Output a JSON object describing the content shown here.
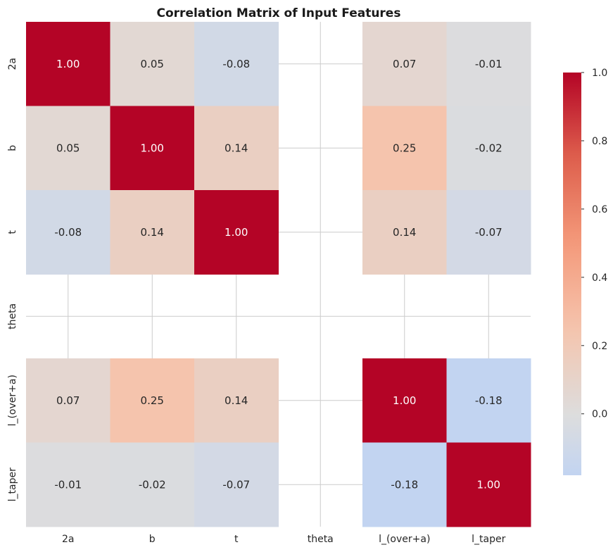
{
  "chart_data": {
    "type": "heatmap",
    "title": "Correlation Matrix of Input Features",
    "x_labels": [
      "2a",
      "b",
      "t",
      "theta",
      "l_(over+a)",
      "l_taper"
    ],
    "y_labels": [
      "2a",
      "b",
      "t",
      "theta",
      "l_(over+a)",
      "l_taper"
    ],
    "values": [
      [
        1.0,
        0.05,
        -0.08,
        null,
        0.07,
        -0.01
      ],
      [
        0.05,
        1.0,
        0.14,
        null,
        0.25,
        -0.02
      ],
      [
        -0.08,
        0.14,
        1.0,
        null,
        0.14,
        -0.07
      ],
      [
        null,
        null,
        null,
        null,
        null,
        null
      ],
      [
        0.07,
        0.25,
        0.14,
        null,
        1.0,
        -0.18
      ],
      [
        -0.01,
        -0.02,
        -0.07,
        null,
        -0.18,
        1.0
      ]
    ],
    "value_format": "0.00",
    "colormap": "coolwarm",
    "center": 0.0,
    "vmin": -0.18,
    "vmax": 1.0,
    "colorbar_ticks": [
      "0.0",
      "0.2",
      "0.4",
      "0.6",
      "0.8",
      "1.0"
    ],
    "grid": true
  }
}
